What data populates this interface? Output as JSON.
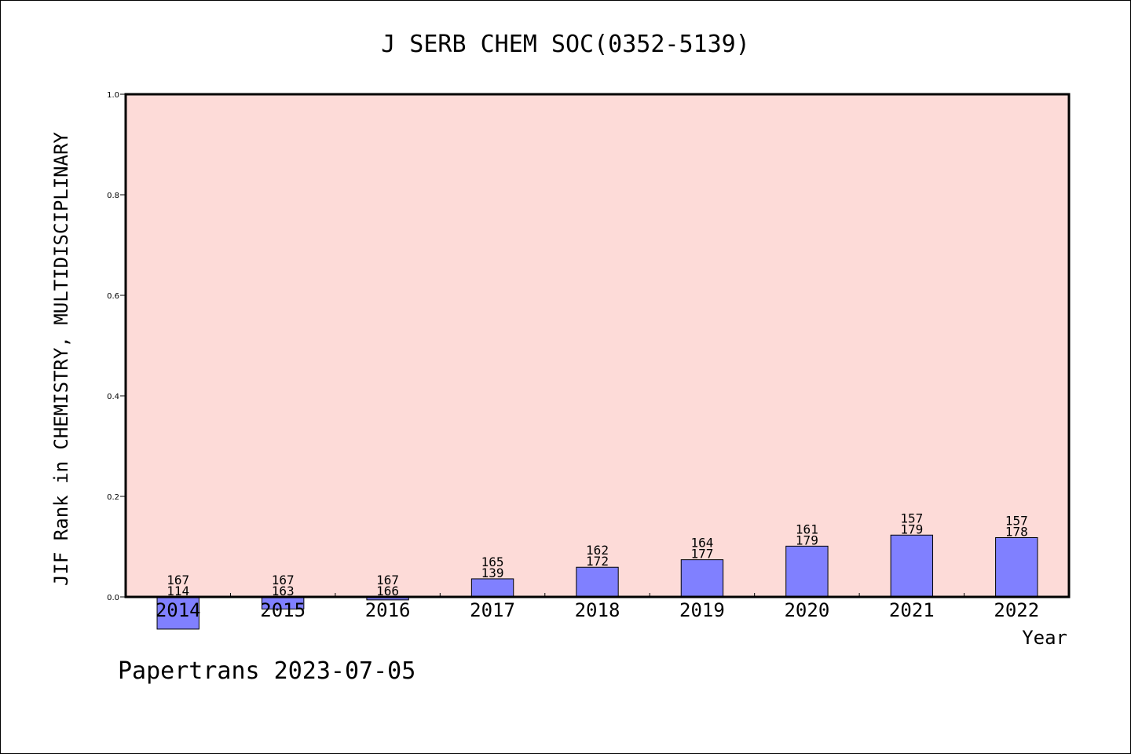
{
  "chart_data": {
    "type": "bar",
    "title": "J SERB CHEM SOC(0352-5139)",
    "xlabel": "Year",
    "ylabel": "JIF Rank in CHEMISTRY, MULTIDISCIPLINARY",
    "ylim": [
      0.0,
      1.0
    ],
    "yticks": [
      "0.0",
      "0.2",
      "0.4",
      "0.6",
      "0.8",
      "1.0"
    ],
    "categories": [
      "2014",
      "2015",
      "2016",
      "2017",
      "2018",
      "2019",
      "2020",
      "2021",
      "2022"
    ],
    "values": [
      -0.064,
      -0.024,
      -0.006,
      0.036,
      0.059,
      0.074,
      0.101,
      0.123,
      0.118
    ],
    "labels_top": [
      "167",
      "167",
      "167",
      "165",
      "162",
      "164",
      "161",
      "157",
      "157"
    ],
    "labels_bottom": [
      "114",
      "163",
      "166",
      "139",
      "172",
      "177",
      "179",
      "179",
      "178"
    ],
    "grid": false,
    "colors": {
      "plot_bg": "#fddbd8",
      "bar": "#8080ff",
      "axis": "#000000"
    }
  },
  "footer": {
    "text": "Papertrans 2023-07-05"
  }
}
